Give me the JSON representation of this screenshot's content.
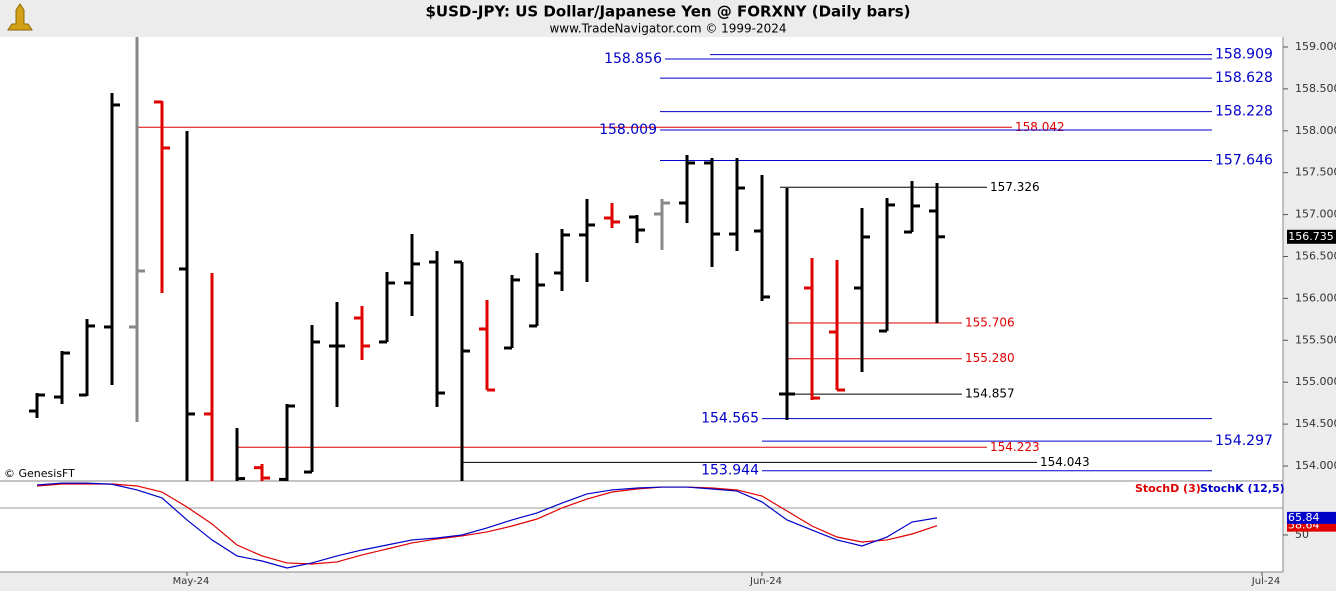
{
  "chart_data": [
    {
      "type": "ohlc",
      "title": "$USD-JPY:  US Dollar/Japanese Yen @ FORXNY  (Daily bars)",
      "subtitle": "www.TradeNavigator.com © 1999-2024",
      "watermark": "© GenesisFT",
      "categories": [
        null,
        null,
        null,
        null,
        null,
        null,
        "May-24",
        null,
        null,
        null,
        null,
        null,
        null,
        null,
        null,
        null,
        null,
        null,
        null,
        null,
        null,
        null,
        null,
        null,
        null,
        null,
        null,
        null,
        null,
        "Jun-24",
        null,
        null,
        null,
        null,
        null,
        null,
        null,
        null,
        null,
        null,
        null,
        null,
        null,
        null,
        null,
        null,
        null,
        null,
        null,
        "Jul-24"
      ],
      "open": [
        154.656,
        154.823,
        154.847,
        155.659,
        155.659,
        158.344,
        156.351,
        154.621,
        153.8,
        153.98,
        153.84,
        153.928,
        155.432,
        155.766,
        155.48,
        156.184,
        156.434,
        156.434,
        155.635,
        155.408,
        155.671,
        156.303,
        156.757,
        156.959,
        156.971,
        157.007,
        157.138,
        157.616,
        156.768,
        156.804,
        154.859,
        156.124,
        155.599,
        156.124,
        155.611,
        156.792,
        157.043,
        null,
        null,
        null,
        null,
        null,
        null,
        null,
        null,
        null,
        null,
        null,
        null,
        null
      ],
      "high": [
        154.871,
        155.372,
        155.754,
        158.451,
        159.2,
        158.356,
        157.998,
        156.303,
        154.453,
        154.024,
        154.74,
        155.683,
        155.957,
        155.909,
        156.315,
        156.768,
        156.566,
        156.434,
        155.981,
        156.279,
        156.542,
        156.828,
        157.186,
        157.138,
        156.995,
        157.186,
        157.711,
        157.675,
        157.675,
        157.473,
        157.317,
        156.482,
        156.458,
        157.079,
        157.198,
        157.401,
        157.377,
        null,
        null,
        null,
        null,
        null,
        null,
        null,
        null,
        null,
        null,
        null,
        null,
        null
      ],
      "low": [
        154.573,
        154.74,
        154.835,
        154.967,
        154.525,
        156.064,
        153.7,
        153.6,
        153.7,
        153.8,
        153.8,
        153.928,
        154.704,
        155.265,
        155.48,
        155.79,
        154.704,
        153.8,
        154.907,
        155.408,
        155.671,
        156.088,
        156.196,
        156.84,
        156.661,
        156.578,
        156.9,
        156.375,
        156.566,
        155.969,
        154.549,
        154.788,
        154.907,
        155.122,
        155.611,
        156.792,
        155.706,
        null,
        null,
        null,
        null,
        null,
        null,
        null,
        null,
        null,
        null,
        null,
        null,
        null
      ],
      "close": [
        154.847,
        155.348,
        155.671,
        158.308,
        156.327,
        157.795,
        154.621,
        153.75,
        153.85,
        153.857,
        154.716,
        155.48,
        155.432,
        155.432,
        156.184,
        156.411,
        154.871,
        155.372,
        154.907,
        156.22,
        156.16,
        156.757,
        156.876,
        156.912,
        156.816,
        157.138,
        157.616,
        156.768,
        157.317,
        156.017,
        154.859,
        154.811,
        154.907,
        156.733,
        157.115,
        157.103,
        156.735,
        null,
        null,
        null,
        null,
        null,
        null,
        null,
        null,
        null,
        null,
        null,
        null,
        null
      ],
      "bar_colors": [
        "#000000",
        "#000000",
        "#000000",
        "#000000",
        "#888888",
        "#e00000",
        "#000000",
        "#e00000",
        "#000000",
        "#e00000",
        "#000000",
        "#000000",
        "#000000",
        "#e00000",
        "#000000",
        "#000000",
        "#000000",
        "#000000",
        "#e00000",
        "#000000",
        "#000000",
        "#000000",
        "#000000",
        "#e00000",
        "#000000",
        "#888888",
        "#000000",
        "#000000",
        "#000000",
        "#000000",
        "#000000",
        "#e00000",
        "#e00000",
        "#000000",
        "#000000",
        "#000000",
        "#000000",
        null,
        null,
        null,
        null,
        null,
        null,
        null,
        null,
        null,
        null,
        null,
        null,
        null
      ],
      "levels": [
        {
          "value": 158.909,
          "label": "158.909",
          "color": "#0000c8"
        },
        {
          "value": 158.856,
          "label": "158.856",
          "color": "#0000c8"
        },
        {
          "value": 158.628,
          "label": "158.628",
          "color": "#0000c8"
        },
        {
          "value": 158.228,
          "label": "158.228",
          "color": "#0000c8"
        },
        {
          "value": 158.042,
          "label": "158.042",
          "color": "#e00000"
        },
        {
          "value": 158.009,
          "label": "158.009",
          "color": "#0000c8"
        },
        {
          "value": 157.646,
          "label": "157.646",
          "color": "#0000c8"
        },
        {
          "value": 157.326,
          "label": "157.326",
          "color": "#000000"
        },
        {
          "value": 155.706,
          "label": "155.706",
          "color": "#e00000"
        },
        {
          "value": 155.28,
          "label": "155.280",
          "color": "#e00000"
        },
        {
          "value": 154.857,
          "label": "154.857",
          "color": "#000000"
        },
        {
          "value": 154.565,
          "label": "154.565",
          "color": "#0000c8"
        },
        {
          "value": 154.297,
          "label": "154.297",
          "color": "#0000c8"
        },
        {
          "value": 154.223,
          "label": "154.223",
          "color": "#e00000"
        },
        {
          "value": 154.043,
          "label": "154.043",
          "color": "#000000"
        },
        {
          "value": 153.944,
          "label": "153.944",
          "color": "#0000c8"
        }
      ],
      "ylim": [
        153.821,
        159.119
      ],
      "yticks": [
        {
          "value": 154,
          "label": "154.000"
        },
        {
          "value": 154.5,
          "label": "154.500"
        },
        {
          "value": 155,
          "label": "155.000"
        },
        {
          "value": 155.5,
          "label": "155.500"
        },
        {
          "value": 156,
          "label": "156.000"
        },
        {
          "value": 156.5,
          "label": "156.500"
        },
        {
          "value": 157,
          "label": "157.000"
        },
        {
          "value": 157.5,
          "label": "157.500"
        },
        {
          "value": 158,
          "label": "158.000"
        },
        {
          "value": 158.5,
          "label": "158.500"
        },
        {
          "value": 159,
          "label": "159.000"
        }
      ]
    },
    {
      "type": "line",
      "series": [
        {
          "name": "StochD (3)",
          "color": "#e00000",
          "values": [
            95.4,
            97.2,
            97.2,
            97.2,
            95.4,
            89.8,
            75.9,
            60.2,
            40.7,
            30.6,
            24.1,
            23.1,
            25,
            31.5,
            37,
            42.6,
            46.3,
            49.1,
            52.8,
            58.3,
            64.8,
            75,
            83.3,
            89.8,
            92.6,
            94.4,
            94.4,
            93.5,
            91.7,
            86.1,
            72.2,
            58.3,
            48.1,
            43.5,
            45.4,
            50.9,
            58.64,
            null,
            null,
            null,
            null,
            null,
            null,
            null,
            null,
            null,
            null,
            null,
            null,
            null
          ]
        },
        {
          "name": "StochK (12,5)",
          "color": "#0000c8",
          "values": [
            96.3,
            98,
            98,
            97,
            91.7,
            84.3,
            63.9,
            45.4,
            30.6,
            25.9,
            19.4,
            24.1,
            30.6,
            36.1,
            40.7,
            45.4,
            47.2,
            50,
            56.5,
            63.9,
            70.4,
            79.6,
            88,
            91.7,
            93.5,
            94.4,
            94.4,
            92.6,
            90.7,
            80.6,
            63.9,
            54.6,
            45.4,
            39.8,
            48.1,
            62,
            65.84,
            null,
            null,
            null,
            null,
            null,
            null,
            null,
            null,
            null,
            null,
            null,
            null,
            null
          ]
        }
      ],
      "ylim": [
        15.7,
        100
      ],
      "yticks": [
        50
      ],
      "reference_lines": [
        75
      ]
    }
  ]
}
